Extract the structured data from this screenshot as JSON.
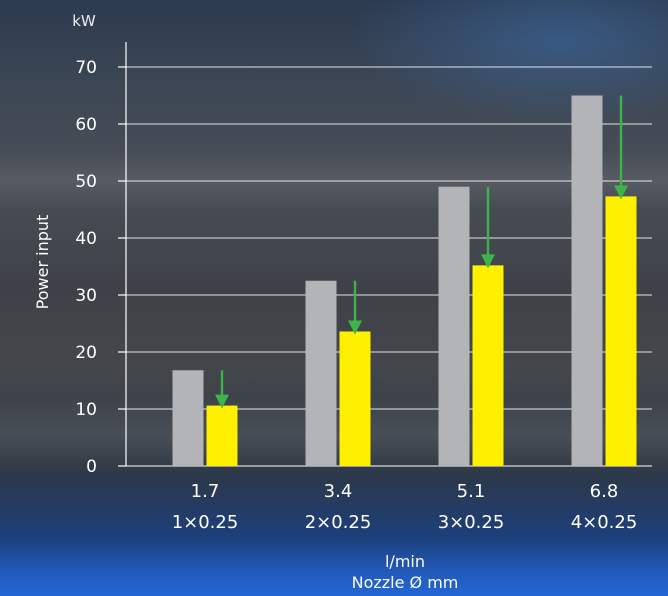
{
  "chart_data": {
    "type": "bar",
    "ylabel": "Power input",
    "yunit": "kW",
    "xlabel": "l/min",
    "xlabel2": "Nozzle Ø mm",
    "ylim": [
      0,
      70
    ],
    "yticks": [
      0,
      10,
      20,
      30,
      40,
      50,
      60,
      70
    ],
    "categories": [
      "1.7",
      "3.4",
      "5.1",
      "6.8"
    ],
    "categories2": [
      "1×0.25",
      "2×0.25",
      "3×0.25",
      "4×0.25"
    ],
    "grid": true,
    "series": [
      {
        "values": [
          16.8,
          32.5,
          49,
          65
        ],
        "color": "#b2b4b7"
      },
      {
        "values": [
          10.6,
          23.6,
          35.2,
          47.3
        ],
        "color": "#fff000"
      }
    ],
    "annotations": {
      "type": "reduction-arrow",
      "color": "#3db34a"
    }
  }
}
